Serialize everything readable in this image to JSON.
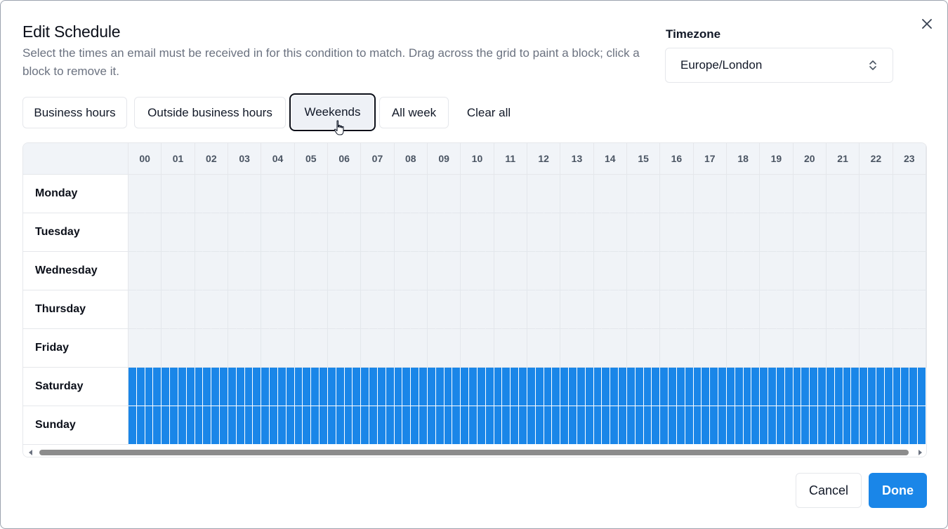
{
  "dialog": {
    "title": "Edit Schedule",
    "description": "Select the times an email must be received in for this condition to match. Drag across the grid to paint a block; click a block to remove it.",
    "close_icon": "close-icon"
  },
  "timezone": {
    "label": "Timezone",
    "value": "Europe/London",
    "icon": "chevron-up-down-icon"
  },
  "presets": [
    {
      "label": "Business hours",
      "active": false
    },
    {
      "label": "Outside business hours",
      "active": false
    },
    {
      "label": "Weekends",
      "active": true
    },
    {
      "label": "All week",
      "active": false
    },
    {
      "label": "Clear all",
      "active": false
    }
  ],
  "grid": {
    "hours": [
      "00",
      "01",
      "02",
      "03",
      "04",
      "05",
      "06",
      "07",
      "08",
      "09",
      "10",
      "11",
      "12",
      "13",
      "14",
      "15",
      "16",
      "17",
      "18",
      "19",
      "20",
      "21",
      "22",
      "23"
    ],
    "days": [
      {
        "label": "Monday",
        "selected": false
      },
      {
        "label": "Tuesday",
        "selected": false
      },
      {
        "label": "Wednesday",
        "selected": false
      },
      {
        "label": "Thursday",
        "selected": false
      },
      {
        "label": "Friday",
        "selected": false
      },
      {
        "label": "Saturday",
        "selected": true
      },
      {
        "label": "Sunday",
        "selected": true
      }
    ],
    "selected_color": "#1a86e8",
    "empty_color": "#f0f3f7"
  },
  "footer": {
    "cancel_label": "Cancel",
    "done_label": "Done"
  }
}
